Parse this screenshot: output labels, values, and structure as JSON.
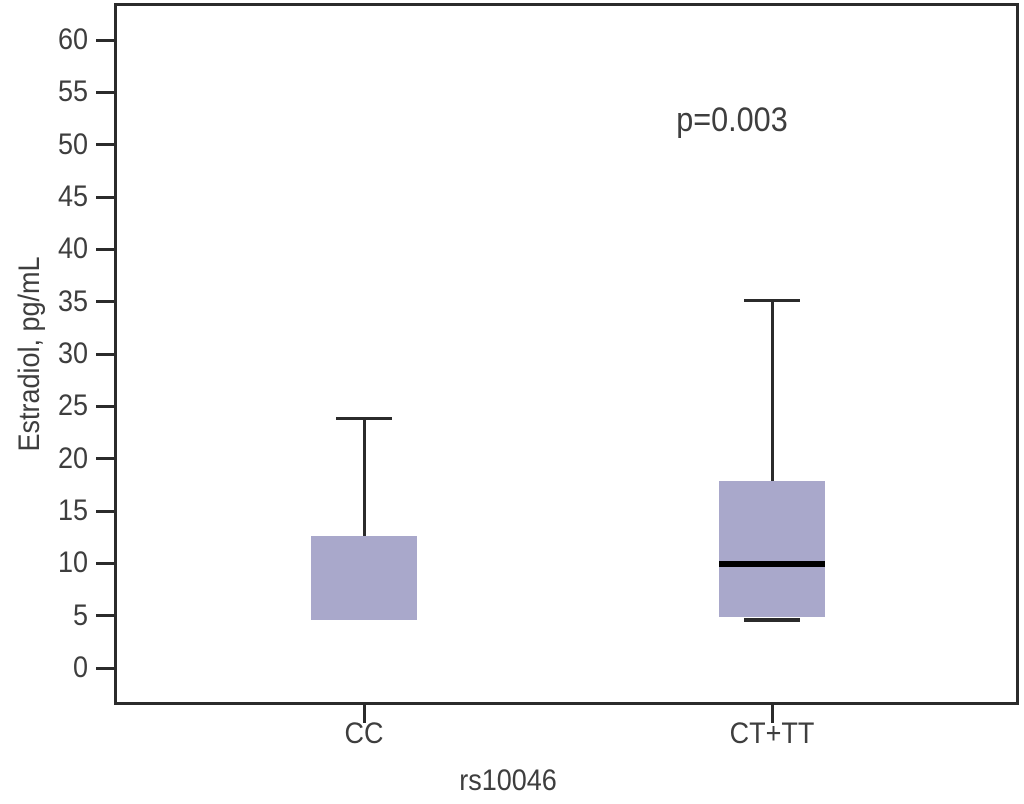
{
  "chart_data": {
    "type": "box",
    "title": "",
    "xlabel": "rs10046",
    "ylabel": "Estradiol, pg/mL",
    "annotation": {
      "text": "p=0.003"
    },
    "ylim": [
      0,
      60
    ],
    "y_ticks": [
      0,
      5,
      10,
      15,
      20,
      25,
      30,
      35,
      40,
      45,
      50,
      55,
      60
    ],
    "categories": [
      "CC",
      "CT+TT"
    ],
    "series": [
      {
        "name": "CC",
        "whisker_low": null,
        "q1": 4.6,
        "median": null,
        "q3": 12.6,
        "whisker_high": 23.8
      },
      {
        "name": "CT+TT",
        "whisker_low": 4.8,
        "q1": 4.9,
        "median": 9.9,
        "q3": 17.9,
        "whisker_high": 35.1
      }
    ],
    "legend": "none",
    "grid": false,
    "colors": {
      "box_fill": "#a9a8cb",
      "line": "#2b2b2b",
      "median": "#000000",
      "text": "#3e3e3e",
      "background": "#ffffff"
    }
  }
}
